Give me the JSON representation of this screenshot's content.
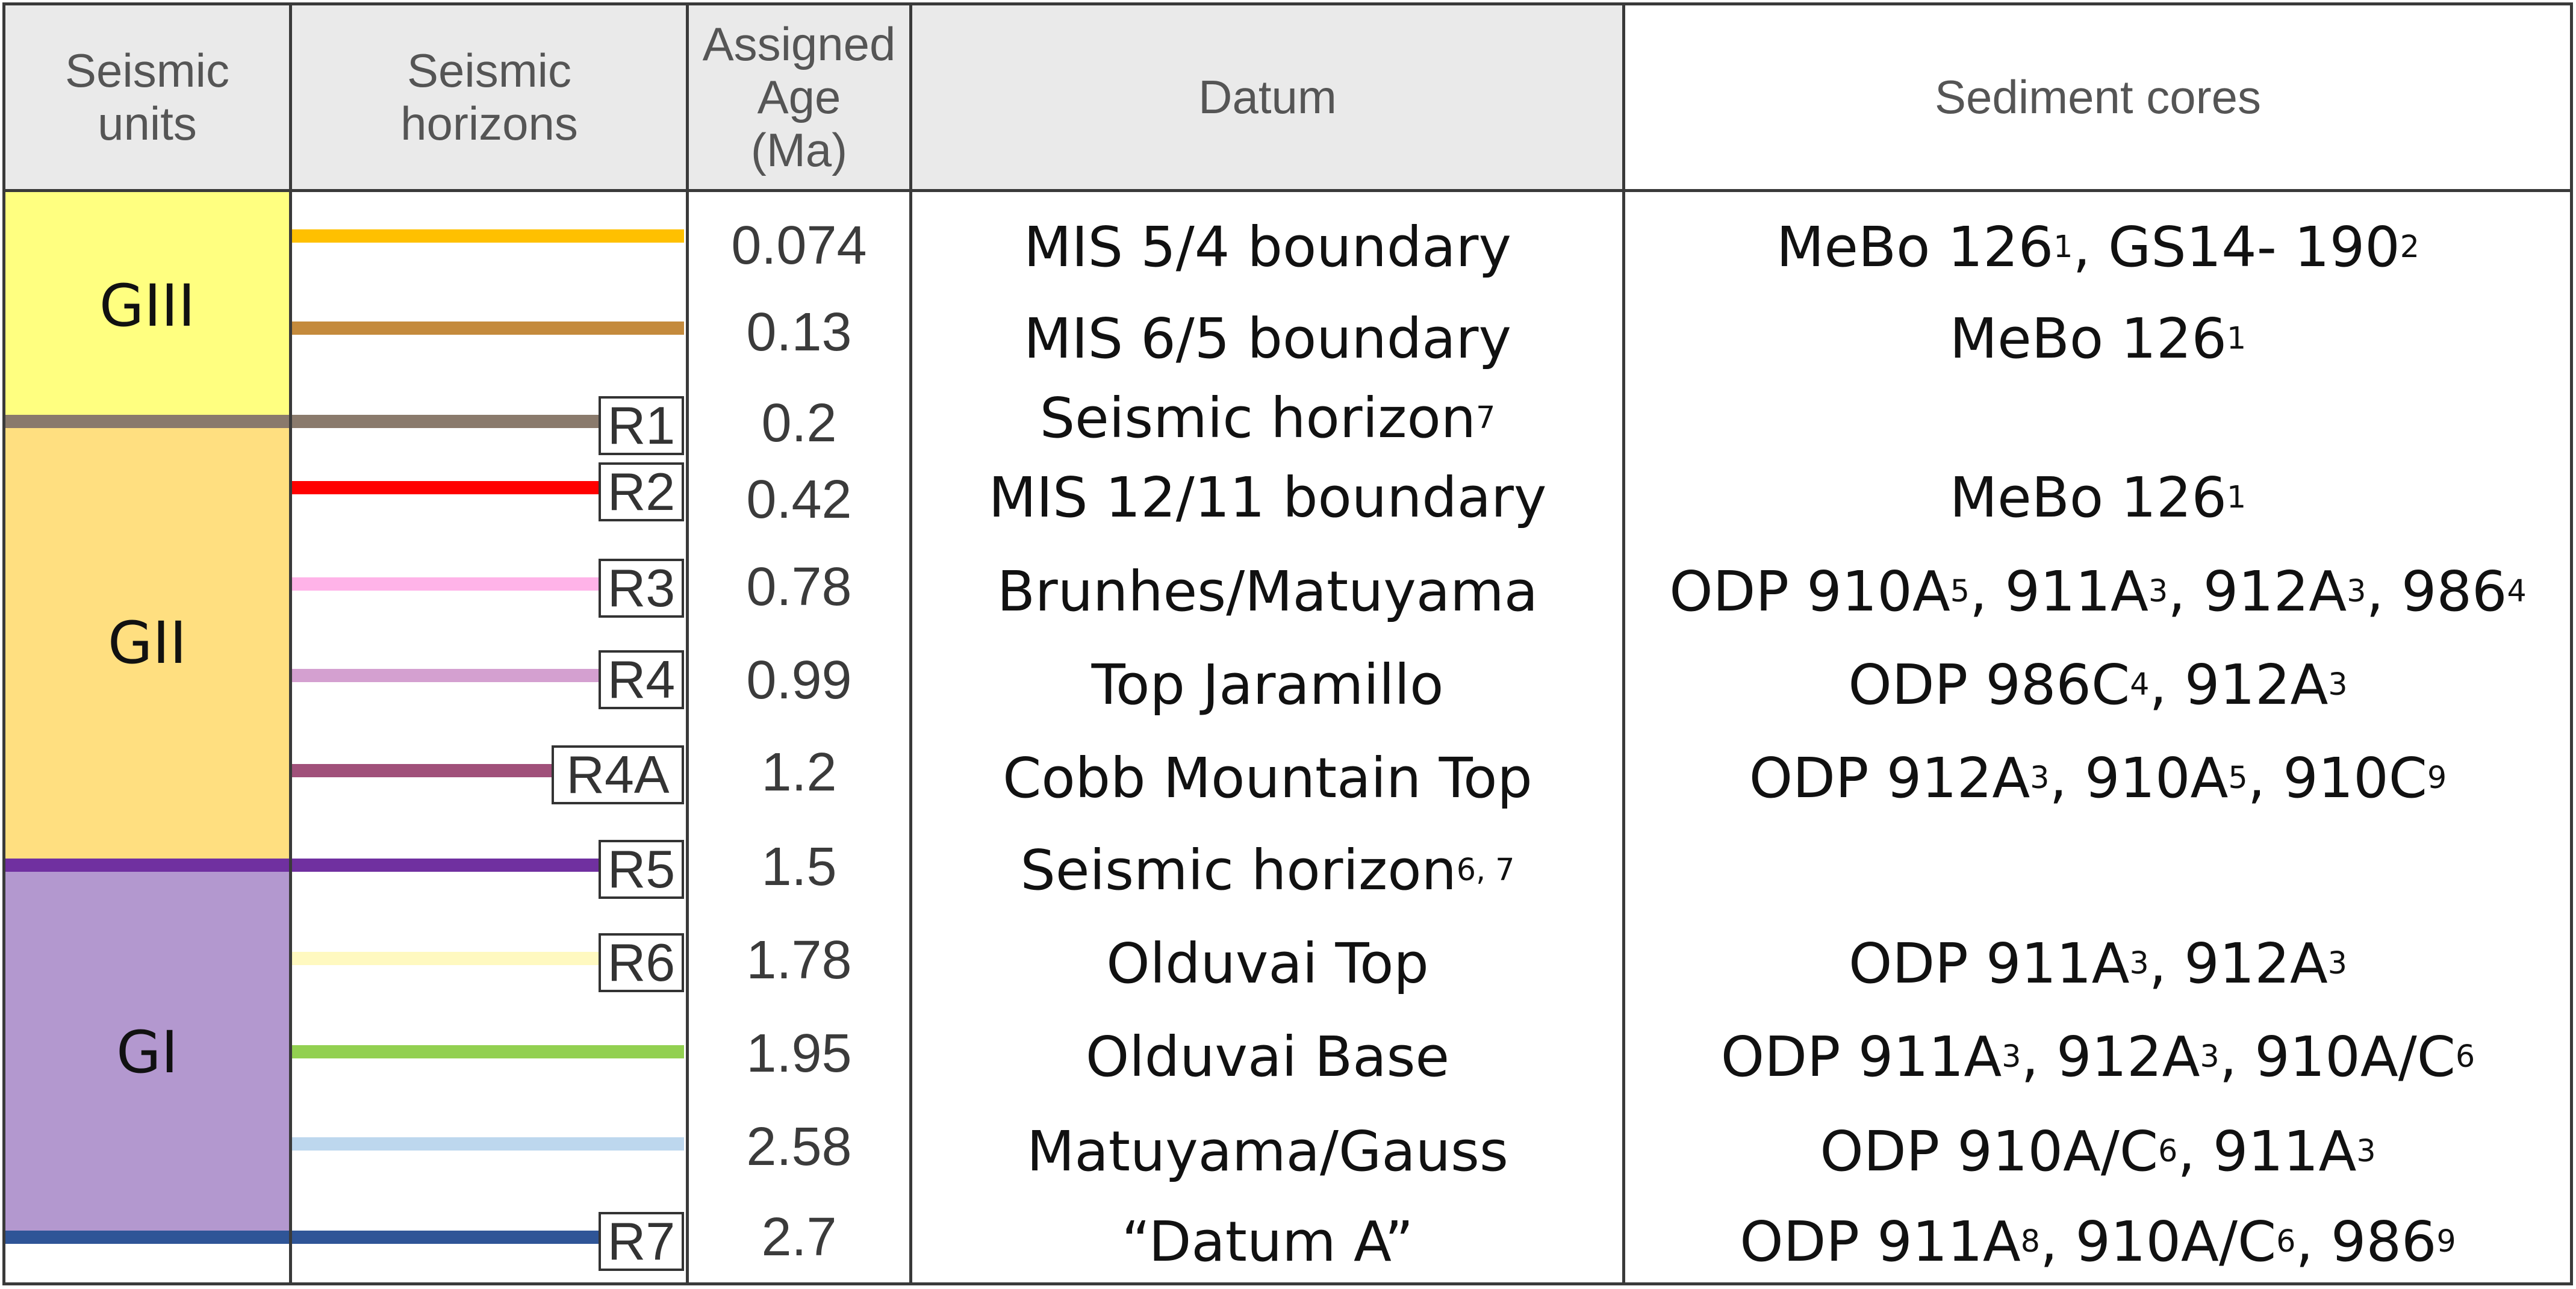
{
  "headers": {
    "units": "Seismic\nunits",
    "horizons": "Seismic\nhorizons",
    "age": "Assigned\nAge\n(Ma)",
    "datum": "Datum",
    "cores": "Sediment cores"
  },
  "units": [
    {
      "label": "GIII",
      "color": "#ffff80"
    },
    {
      "label": "GII",
      "color": "#ffdf80"
    },
    {
      "label": "GI",
      "color": "#b398cf"
    }
  ],
  "rows": [
    {
      "horizon": "",
      "color": "#ffc000",
      "age": "0.074",
      "datum": [
        {
          "t": "MIS 5/4 boundary"
        }
      ],
      "cores": [
        {
          "t": "MeBo 126"
        },
        {
          "t": "1",
          "s": true
        },
        {
          "t": ", GS14- 190"
        },
        {
          "t": "2",
          "s": true
        }
      ]
    },
    {
      "horizon": "",
      "color": "#c48a3c",
      "age": "0.13",
      "datum": [
        {
          "t": "MIS 6/5 boundary"
        }
      ],
      "cores": [
        {
          "t": "MeBo 126"
        },
        {
          "t": "1",
          "s": true
        }
      ]
    },
    {
      "horizon": "R1",
      "color": "#8a7a6c",
      "age": "0.2",
      "datum": [
        {
          "t": "Seismic horizon"
        },
        {
          "t": "7",
          "s": true
        }
      ],
      "cores": []
    },
    {
      "horizon": "R2",
      "color": "#ff0000",
      "age": "0.42",
      "datum": [
        {
          "t": "MIS 12/11 boundary"
        }
      ],
      "cores": [
        {
          "t": "MeBo 126"
        },
        {
          "t": "1",
          "s": true
        }
      ]
    },
    {
      "horizon": "R3",
      "color": "#ffb3e8",
      "age": "0.78",
      "datum": [
        {
          "t": "Brunhes/Matuyama"
        }
      ],
      "cores": [
        {
          "t": "ODP 910A"
        },
        {
          "t": "5",
          "s": true
        },
        {
          "t": ", 911A"
        },
        {
          "t": "3",
          "s": true
        },
        {
          "t": ", 912A"
        },
        {
          "t": "3",
          "s": true
        },
        {
          "t": ", 986"
        },
        {
          "t": "4",
          "s": true
        }
      ]
    },
    {
      "horizon": "R4",
      "color": "#d4a0d0",
      "age": "0.99",
      "datum": [
        {
          "t": "Top Jaramillo"
        }
      ],
      "cores": [
        {
          "t": "ODP 986C"
        },
        {
          "t": "4",
          "s": true
        },
        {
          "t": ", 912A"
        },
        {
          "t": "3",
          "s": true
        }
      ]
    },
    {
      "horizon": "R4A",
      "color": "#a0507a",
      "age": "1.2",
      "datum": [
        {
          "t": "Cobb Mountain Top"
        }
      ],
      "cores": [
        {
          "t": "ODP 912A"
        },
        {
          "t": "3",
          "s": true
        },
        {
          "t": ", 910A"
        },
        {
          "t": "5",
          "s": true
        },
        {
          "t": ", 910C"
        },
        {
          "t": "9",
          "s": true
        }
      ]
    },
    {
      "horizon": "R5",
      "color": "#7030a0",
      "age": "1.5",
      "datum": [
        {
          "t": "Seismic horizon "
        },
        {
          "t": "6, 7",
          "s": true
        }
      ],
      "cores": []
    },
    {
      "horizon": "R6",
      "color": "#fff9c0",
      "age": "1.78",
      "datum": [
        {
          "t": "Olduvai Top"
        }
      ],
      "cores": [
        {
          "t": "ODP 911A"
        },
        {
          "t": "3",
          "s": true
        },
        {
          "t": ", 912A"
        },
        {
          "t": "3",
          "s": true
        }
      ]
    },
    {
      "horizon": "",
      "color": "#92d050",
      "age": "1.95",
      "datum": [
        {
          "t": "Olduvai Base"
        }
      ],
      "cores": [
        {
          "t": "ODP 911A"
        },
        {
          "t": "3",
          "s": true
        },
        {
          "t": ", 912A"
        },
        {
          "t": "3",
          "s": true
        },
        {
          "t": ", 910A/C"
        },
        {
          "t": "6",
          "s": true
        }
      ]
    },
    {
      "horizon": "",
      "color": "#bdd7ee",
      "age": "2.58",
      "datum": [
        {
          "t": "Matuyama/Gauss"
        }
      ],
      "cores": [
        {
          "t": "ODP 910A/C"
        },
        {
          "t": "6",
          "s": true
        },
        {
          "t": ", 911A"
        },
        {
          "t": "3",
          "s": true
        }
      ]
    },
    {
      "horizon": "R7",
      "color": "#2f5597",
      "age": "2.7",
      "datum": [
        {
          "t": "“Datum A”"
        }
      ],
      "cores": [
        {
          "t": "ODP 911A"
        },
        {
          "t": "8",
          "s": true
        },
        {
          "t": ", 910A/C"
        },
        {
          "t": "6",
          "s": true
        },
        {
          "t": ", 986"
        },
        {
          "t": "9",
          "s": true
        }
      ]
    }
  ]
}
